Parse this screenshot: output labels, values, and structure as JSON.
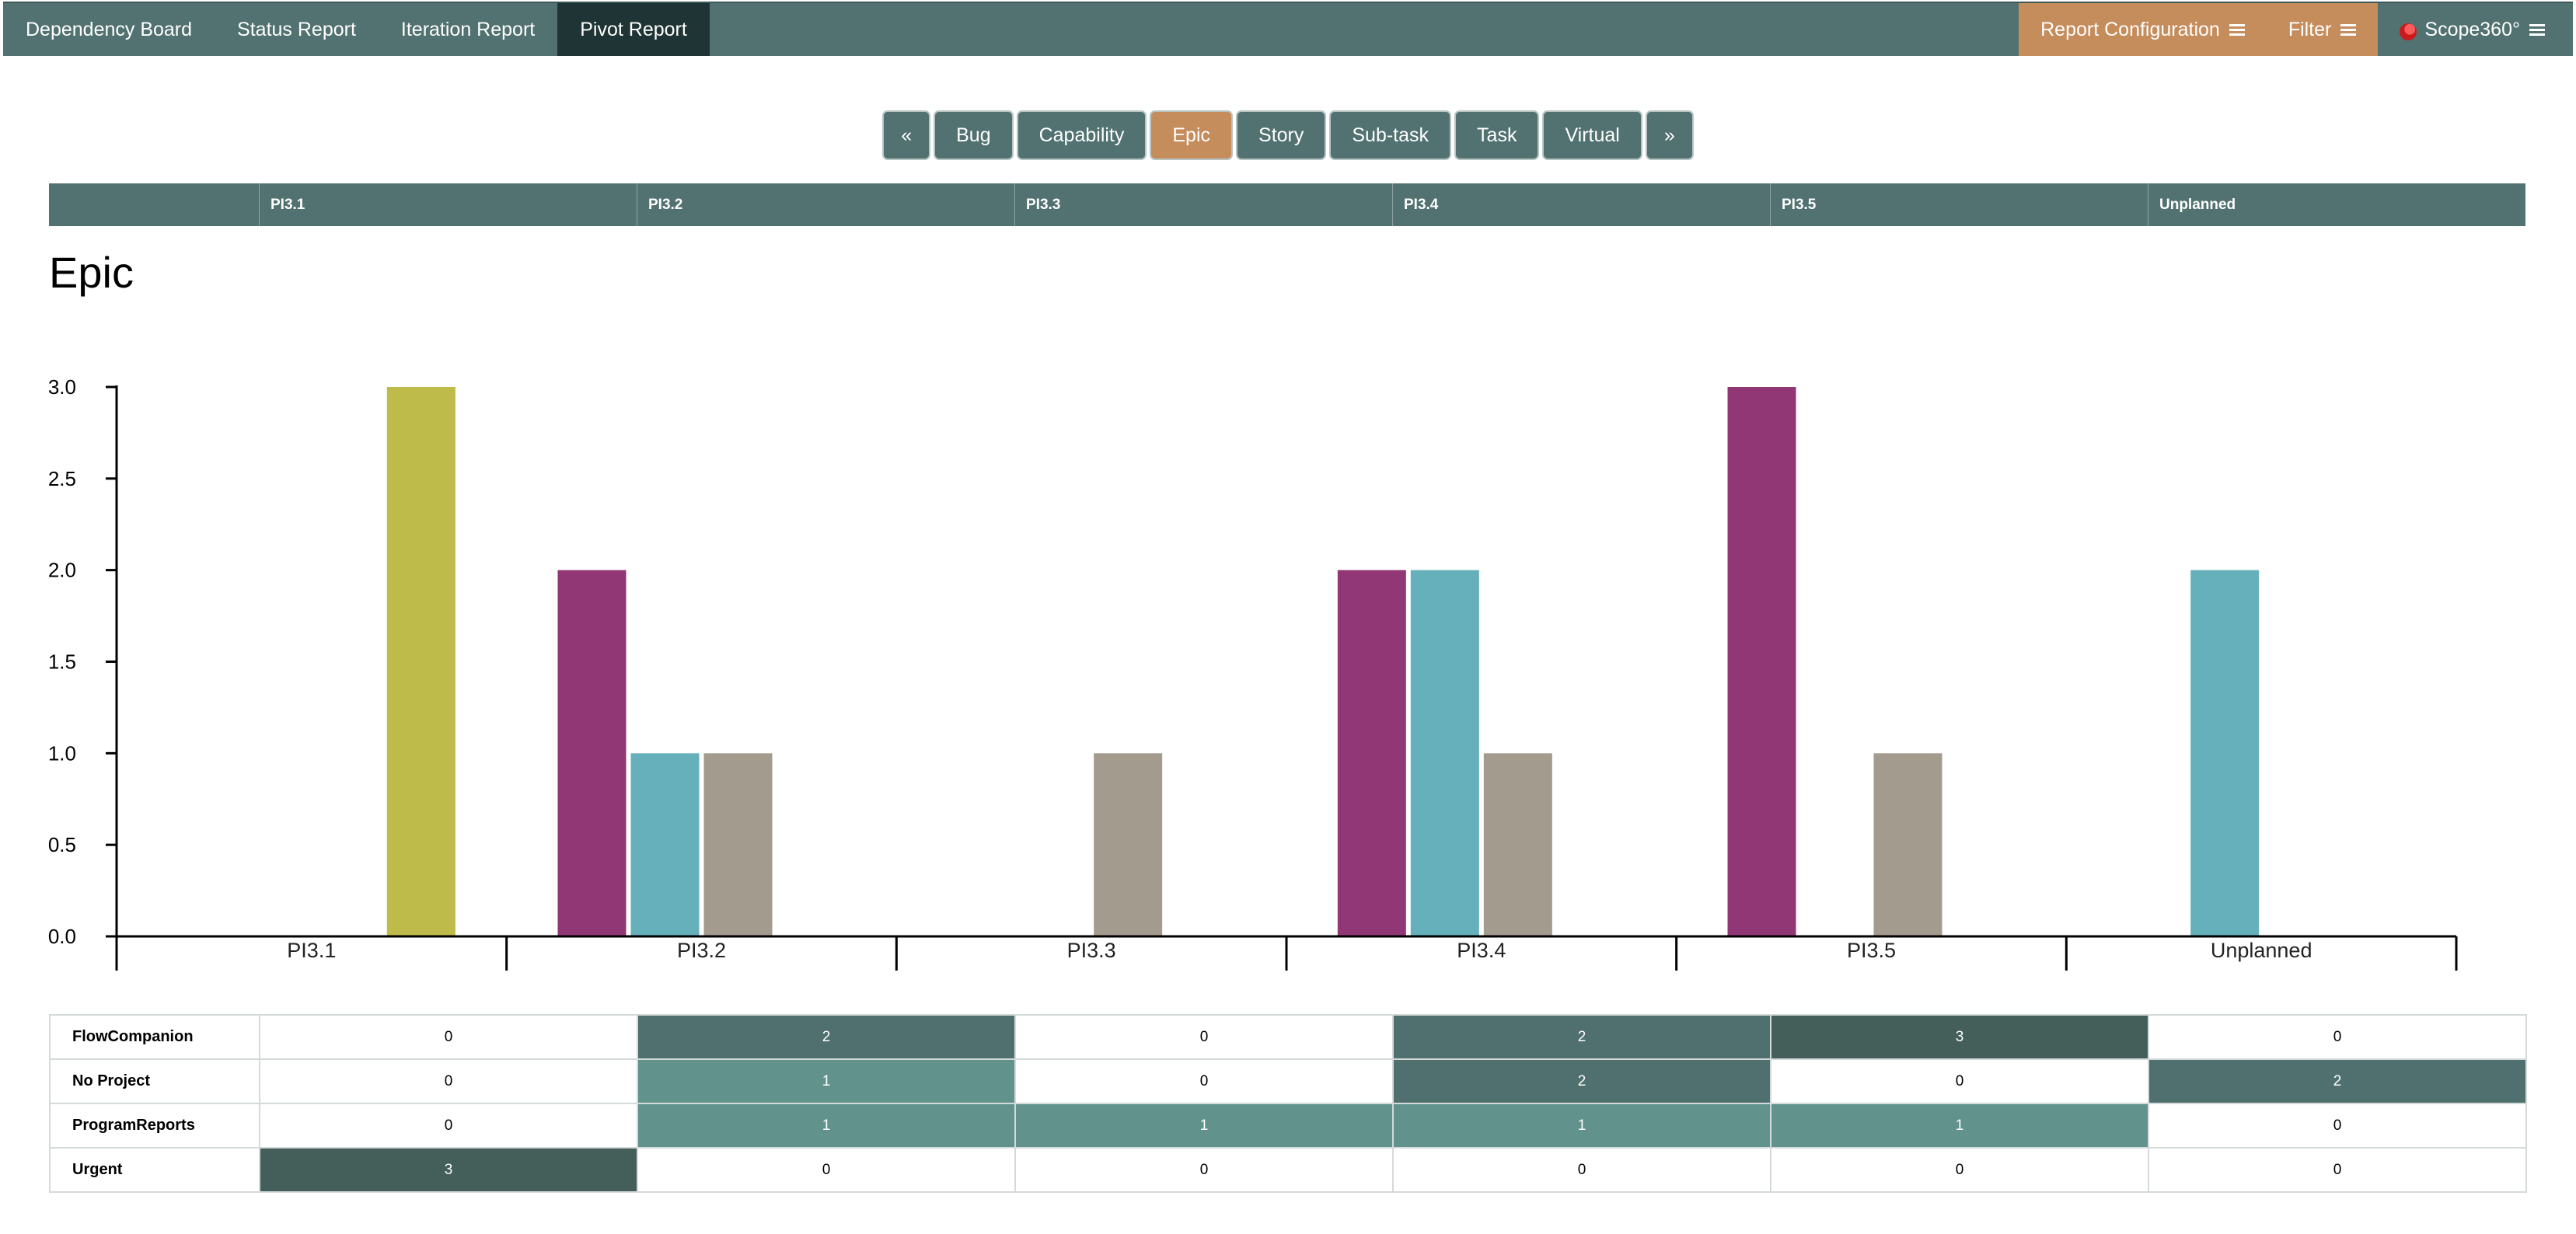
{
  "nav": {
    "items": [
      {
        "label": "Dependency Board"
      },
      {
        "label": "Status Report"
      },
      {
        "label": "Iteration Report"
      },
      {
        "label": "Pivot Report",
        "active": true
      }
    ],
    "report_config_label": "Report Configuration",
    "filter_label": "Filter",
    "brand_label": "Scope360°"
  },
  "pager": {
    "prev": "«",
    "next": "»",
    "types": [
      {
        "label": "Bug"
      },
      {
        "label": "Capability"
      },
      {
        "label": "Epic",
        "active": true
      },
      {
        "label": "Story"
      },
      {
        "label": "Sub-task"
      },
      {
        "label": "Task"
      },
      {
        "label": "Virtual"
      }
    ]
  },
  "columns": [
    "PI3.1",
    "PI3.2",
    "PI3.3",
    "PI3.4",
    "PI3.5",
    "Unplanned"
  ],
  "page_title": "Epic",
  "colors": {
    "header": "#527171",
    "accent": "#c58c5c",
    "series": {
      "FlowCompanion": "#923775",
      "No Project": "#66b0bb",
      "ProgramReports": "#a39b8e",
      "Urgent": "#bfbb4a"
    },
    "cell_scale": [
      "#ffffff",
      "#62928c",
      "#4f706e",
      "#445e5a"
    ]
  },
  "chart_data": {
    "type": "bar",
    "title": "Epic",
    "categories": [
      "PI3.1",
      "PI3.2",
      "PI3.3",
      "PI3.4",
      "PI3.5",
      "Unplanned"
    ],
    "ylim": [
      0,
      3
    ],
    "yticks": [
      "0.0",
      "0.5",
      "1.0",
      "1.5",
      "2.0",
      "2.5",
      "3.0"
    ],
    "grid": false,
    "series": [
      {
        "name": "FlowCompanion",
        "values": [
          0,
          2,
          0,
          2,
          3,
          0
        ]
      },
      {
        "name": "No Project",
        "values": [
          0,
          1,
          0,
          2,
          0,
          2
        ]
      },
      {
        "name": "ProgramReports",
        "values": [
          0,
          1,
          1,
          1,
          1,
          0
        ]
      },
      {
        "name": "Urgent",
        "values": [
          3,
          0,
          0,
          0,
          0,
          0
        ]
      }
    ]
  },
  "table": {
    "rows": [
      {
        "name": "FlowCompanion",
        "values": [
          "0",
          "2",
          "0",
          "2",
          "3",
          "0"
        ]
      },
      {
        "name": "No Project",
        "values": [
          "0",
          "1",
          "0",
          "2",
          "0",
          "2"
        ]
      },
      {
        "name": "ProgramReports",
        "values": [
          "0",
          "1",
          "1",
          "1",
          "1",
          "0"
        ]
      },
      {
        "name": "Urgent",
        "values": [
          "3",
          "0",
          "0",
          "0",
          "0",
          "0"
        ]
      }
    ]
  }
}
